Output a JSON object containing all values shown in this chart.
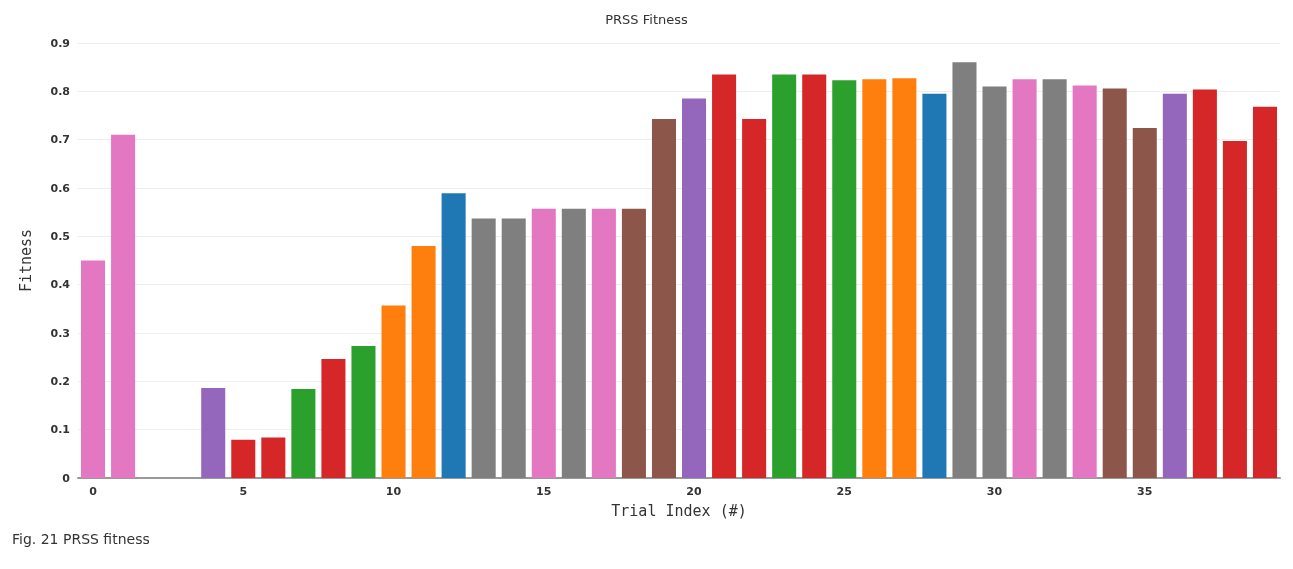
{
  "chart_data": {
    "type": "bar",
    "title": "PRSS Fitness",
    "xlabel": "Trial Index (#)",
    "ylabel": "Fitness",
    "x": [
      0,
      1,
      2,
      3,
      4,
      5,
      6,
      7,
      8,
      9,
      10,
      11,
      12,
      13,
      14,
      15,
      16,
      17,
      18,
      19,
      20,
      21,
      22,
      23,
      24,
      25,
      26,
      27,
      28,
      29,
      30,
      31,
      32,
      33,
      34,
      35,
      36,
      37,
      38,
      39
    ],
    "values": [
      0.45,
      0.71,
      null,
      null,
      0.186,
      0.079,
      0.084,
      0.184,
      0.246,
      0.273,
      0.357,
      0.48,
      0.589,
      0.537,
      0.537,
      0.557,
      0.557,
      0.557,
      0.557,
      0.743,
      0.785,
      0.835,
      0.743,
      0.835,
      0.835,
      0.823,
      0.825,
      0.827,
      0.795,
      0.86,
      0.81,
      0.825,
      0.825,
      0.812,
      0.806,
      0.724,
      0.795,
      0.804,
      0.697,
      0.768
    ],
    "colors": [
      "#e377c2",
      "#e377c2",
      "#7f7f7f",
      "#7f7f7f",
      "#9467bd",
      "#d62728",
      "#d62728",
      "#2ca02c",
      "#d62728",
      "#2ca02c",
      "#ff7f0e",
      "#ff7f0e",
      "#1f77b4",
      "#7f7f7f",
      "#7f7f7f",
      "#e377c2",
      "#7f7f7f",
      "#e377c2",
      "#8c564b",
      "#8c564b",
      "#9467bd",
      "#d62728",
      "#d62728",
      "#2ca02c",
      "#d62728",
      "#2ca02c",
      "#ff7f0e",
      "#ff7f0e",
      "#1f77b4",
      "#7f7f7f",
      "#7f7f7f",
      "#e377c2",
      "#7f7f7f",
      "#e377c2",
      "#8c564b",
      "#8c564b",
      "#9467bd",
      "#d62728",
      "#d62728",
      "#d62728"
    ],
    "xlim": [
      -0.5,
      39.5
    ],
    "xticks": [
      0,
      5,
      10,
      15,
      20,
      25,
      30,
      35
    ],
    "ylim": [
      0,
      0.9
    ],
    "yticks": [
      0,
      0.1,
      0.2,
      0.3,
      0.4,
      0.5,
      0.6,
      0.7,
      0.8,
      0.9
    ],
    "grid": "y",
    "annotations": [
      "Fig. 21  PRSS fitness"
    ]
  }
}
